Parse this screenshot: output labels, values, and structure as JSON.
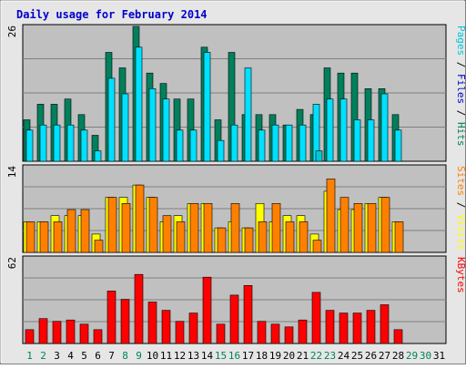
{
  "chart_data": {
    "type": "bar",
    "title": "Daily usage for February 2014",
    "categories": [
      "1",
      "2",
      "3",
      "4",
      "5",
      "6",
      "7",
      "8",
      "9",
      "10",
      "11",
      "12",
      "13",
      "14",
      "15",
      "16",
      "17",
      "18",
      "19",
      "20",
      "21",
      "22",
      "23",
      "24",
      "25",
      "26",
      "27",
      "28",
      "29",
      "30",
      "31"
    ],
    "weekend_days": [
      "1",
      "2",
      "8",
      "9",
      "15",
      "16",
      "22",
      "23",
      "29",
      "30"
    ],
    "future_days": [
      "29",
      "30",
      "31"
    ],
    "colors": {
      "background": "#c0c0c0",
      "frame": "#e6e6e6",
      "title": "#0000cc",
      "hits": "#00805c",
      "files": "#00e0ff",
      "pages": "#00c8d8",
      "visits": "#ffff00",
      "sites": "#ff8000",
      "kbytes": "#ff0000",
      "weekday_label": "#000000",
      "weekend_label": "#00805c"
    },
    "panels": [
      {
        "id": "hits-files-pages",
        "axis_max_label": "26",
        "ymax": 26,
        "right_label_parts": [
          {
            "text": "Pages",
            "color": "#00c8d8"
          },
          {
            "text": " / ",
            "color": "#000000"
          },
          {
            "text": "Files",
            "color": "#0000cc"
          },
          {
            "text": " / ",
            "color": "#000000"
          },
          {
            "text": "Hits",
            "color": "#00805c"
          }
        ],
        "series": [
          {
            "name": "Hits",
            "color": "#00805c",
            "values": [
              8,
              11,
              11,
              12,
              9,
              5,
              21,
              18,
              26,
              17,
              15,
              12,
              12,
              22,
              8,
              21,
              9,
              9,
              9,
              7,
              10,
              9,
              18,
              17,
              17,
              14,
              14,
              9,
              0,
              0,
              0
            ]
          },
          {
            "name": "Files",
            "color": "#00e0ff",
            "values": [
              6,
              7,
              7,
              7,
              6,
              2,
              16,
              13,
              22,
              14,
              12,
              6,
              6,
              21,
              4,
              7,
              18,
              6,
              7,
              7,
              7,
              11,
              12,
              12,
              8,
              8,
              13,
              6,
              0,
              0,
              0
            ]
          },
          {
            "name": "Pages",
            "color": "#00c8d8",
            "values": [
              0,
              0,
              0,
              0,
              0,
              0,
              0,
              0,
              0,
              0,
              0,
              0,
              0,
              0,
              0,
              0,
              0,
              0,
              0,
              0,
              0,
              2,
              0,
              0,
              0,
              0,
              0,
              0,
              0,
              0,
              0
            ]
          }
        ]
      },
      {
        "id": "visits-sites",
        "axis_max_label": "14",
        "ymax": 14,
        "right_label_parts": [
          {
            "text": "Sites",
            "color": "#ff8000"
          },
          {
            "text": " / ",
            "color": "#000000"
          },
          {
            "text": "Visits",
            "color": "#ffff00"
          }
        ],
        "series": [
          {
            "name": "Visits",
            "color": "#ffff00",
            "values": [
              5,
              5,
              6,
              6,
              6,
              3,
              9,
              9,
              11,
              9,
              5,
              6,
              8,
              8,
              4,
              5,
              4,
              8,
              5,
              6,
              6,
              3,
              10,
              7,
              7,
              8,
              9,
              5,
              0,
              0,
              0
            ]
          },
          {
            "name": "Sites",
            "color": "#ff8000",
            "values": [
              5,
              5,
              5,
              7,
              7,
              2,
              9,
              8,
              11,
              9,
              6,
              5,
              8,
              8,
              4,
              8,
              4,
              5,
              8,
              5,
              5,
              2,
              12,
              9,
              8,
              8,
              9,
              5,
              0,
              0,
              0
            ]
          }
        ]
      },
      {
        "id": "kbytes",
        "axis_max_label": "62",
        "ymax": 62,
        "right_label_parts": [
          {
            "text": "KBytes",
            "color": "#ff0000"
          }
        ],
        "series": [
          {
            "name": "KBytes",
            "color": "#ff0000",
            "values": [
              10,
              18,
              16,
              17,
              14,
              10,
              38,
              32,
              50,
              30,
              24,
              16,
              22,
              48,
              14,
              35,
              42,
              16,
              14,
              12,
              17,
              37,
              24,
              22,
              22,
              24,
              28,
              10,
              0,
              0,
              0
            ]
          }
        ]
      }
    ]
  }
}
